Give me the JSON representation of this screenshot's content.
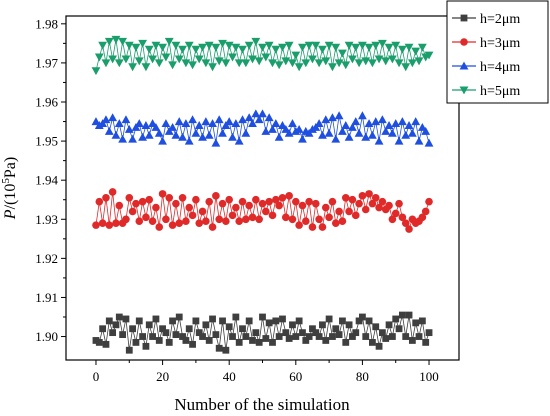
{
  "chart_data": {
    "type": "line",
    "xlabel": "Number of the simulation",
    "ylabel_italic": "P",
    "ylabel_rest": "/(10",
    "ylabel_sup": "5",
    "ylabel_end": "Pa)",
    "xlim": [
      -9,
      109
    ],
    "ylim": [
      1.894,
      1.982
    ],
    "xticks": [
      0,
      20,
      40,
      60,
      80,
      100
    ],
    "xtick_labels": [
      "0",
      "20",
      "40",
      "60",
      "80",
      "100"
    ],
    "yticks": [
      1.9,
      1.91,
      1.92,
      1.93,
      1.94,
      1.95,
      1.96,
      1.97,
      1.98
    ],
    "ytick_labels": [
      "1.90",
      "1.91",
      "1.92",
      "1.93",
      "1.94",
      "1.95",
      "1.96",
      "1.97",
      "1.98"
    ],
    "grid": false,
    "legend_position": "top-right",
    "x": [
      0,
      1,
      2,
      3,
      4,
      5,
      6,
      7,
      8,
      9,
      10,
      11,
      12,
      13,
      14,
      15,
      16,
      17,
      18,
      19,
      20,
      21,
      22,
      23,
      24,
      25,
      26,
      27,
      28,
      29,
      30,
      31,
      32,
      33,
      34,
      35,
      36,
      37,
      38,
      39,
      40,
      41,
      42,
      43,
      44,
      45,
      46,
      47,
      48,
      49,
      50,
      51,
      52,
      53,
      54,
      55,
      56,
      57,
      58,
      59,
      60,
      61,
      62,
      63,
      64,
      65,
      66,
      67,
      68,
      69,
      70,
      71,
      72,
      73,
      74,
      75,
      76,
      77,
      78,
      79,
      80,
      81,
      82,
      83,
      84,
      85,
      86,
      87,
      88,
      89,
      90,
      91,
      92,
      93,
      94,
      95,
      96,
      97,
      98,
      99,
      100
    ],
    "series": [
      {
        "name": "h=2μm",
        "color": "#3f3f3f",
        "marker": "square",
        "values": [
          1.899,
          1.8985,
          1.902,
          1.898,
          1.904,
          1.901,
          1.903,
          1.905,
          1.9005,
          1.9045,
          1.8965,
          1.902,
          1.8985,
          1.904,
          1.9,
          1.8975,
          1.903,
          1.9,
          1.9045,
          1.899,
          1.902,
          1.901,
          1.8985,
          1.904,
          1.9005,
          1.905,
          1.9,
          1.899,
          1.902,
          1.898,
          1.904,
          1.901,
          1.9,
          1.903,
          1.899,
          1.9045,
          1.9005,
          1.897,
          1.904,
          1.8965,
          1.9025,
          1.9,
          1.905,
          1.8985,
          1.902,
          1.9,
          1.904,
          1.899,
          1.901,
          1.8985,
          1.905,
          1.8995,
          1.9035,
          1.8985,
          1.904,
          1.9,
          1.9045,
          1.901,
          1.8995,
          1.903,
          1.9,
          1.904,
          1.901,
          1.899,
          1.9,
          1.902,
          1.901,
          1.9,
          1.903,
          1.899,
          1.9045,
          1.9,
          1.902,
          1.9005,
          1.904,
          1.8985,
          1.903,
          1.9,
          1.901,
          1.904,
          1.905,
          1.9,
          1.904,
          1.8985,
          1.9025,
          1.8975,
          1.901,
          1.8995,
          1.903,
          1.9,
          1.9045,
          1.902,
          1.9055,
          1.9,
          1.9055,
          1.899,
          1.9035,
          1.9,
          1.904,
          1.8985,
          1.901
        ]
      },
      {
        "name": "h=3μm",
        "color": "#e02a2a",
        "marker": "circle",
        "values": [
          1.9285,
          1.9345,
          1.929,
          1.9355,
          1.9285,
          1.937,
          1.929,
          1.9335,
          1.929,
          1.93,
          1.9355,
          1.932,
          1.934,
          1.9295,
          1.9345,
          1.9305,
          1.935,
          1.9295,
          1.933,
          1.928,
          1.9365,
          1.93,
          1.9355,
          1.9285,
          1.934,
          1.929,
          1.9355,
          1.9295,
          1.933,
          1.931,
          1.935,
          1.929,
          1.932,
          1.9295,
          1.9345,
          1.928,
          1.936,
          1.93,
          1.934,
          1.9295,
          1.935,
          1.931,
          1.933,
          1.9295,
          1.9345,
          1.93,
          1.9335,
          1.9305,
          1.935,
          1.93,
          1.934,
          1.932,
          1.9345,
          1.931,
          1.935,
          1.9335,
          1.9355,
          1.9305,
          1.936,
          1.93,
          1.9345,
          1.9285,
          1.9335,
          1.9295,
          1.9345,
          1.928,
          1.934,
          1.93,
          1.928,
          1.933,
          1.9305,
          1.9345,
          1.929,
          1.932,
          1.9295,
          1.9355,
          1.932,
          1.935,
          1.931,
          1.934,
          1.936,
          1.9325,
          1.9365,
          1.934,
          1.9355,
          1.933,
          1.9345,
          1.9325,
          1.9335,
          1.93,
          1.9315,
          1.934,
          1.9305,
          1.929,
          1.9275,
          1.93,
          1.929,
          1.9295,
          1.9305,
          1.932,
          1.9345
        ]
      },
      {
        "name": "h=4μm",
        "color": "#1f4fe0",
        "marker": "triangle-up",
        "values": [
          1.955,
          1.954,
          1.9545,
          1.9555,
          1.9525,
          1.956,
          1.9515,
          1.9545,
          1.9505,
          1.9555,
          1.953,
          1.9505,
          1.9535,
          1.9545,
          1.951,
          1.954,
          1.9515,
          1.9545,
          1.9535,
          1.952,
          1.95,
          1.9545,
          1.9525,
          1.9535,
          1.9515,
          1.955,
          1.951,
          1.9545,
          1.95,
          1.9555,
          1.952,
          1.954,
          1.951,
          1.955,
          1.9515,
          1.9545,
          1.9495,
          1.9555,
          1.952,
          1.954,
          1.955,
          1.951,
          1.9545,
          1.95,
          1.9555,
          1.952,
          1.956,
          1.9545,
          1.957,
          1.9555,
          1.957,
          1.9525,
          1.956,
          1.953,
          1.9545,
          1.951,
          1.954,
          1.953,
          1.952,
          1.9545,
          1.9525,
          1.953,
          1.9505,
          1.9525,
          1.952,
          1.953,
          1.9535,
          1.9545,
          1.9515,
          1.9555,
          1.952,
          1.956,
          1.9505,
          1.9565,
          1.9525,
          1.954,
          1.951,
          1.9535,
          1.955,
          1.952,
          1.9565,
          1.951,
          1.9545,
          1.9515,
          1.955,
          1.95,
          1.9555,
          1.9525,
          1.954,
          1.952,
          1.9545,
          1.95,
          1.955,
          1.9515,
          1.954,
          1.952,
          1.955,
          1.95,
          1.9535,
          1.9525,
          1.9495
        ]
      },
      {
        "name": "h=5μm",
        "color": "#1a9e6c",
        "marker": "triangle-down",
        "values": [
          1.968,
          1.9715,
          1.9745,
          1.97,
          1.9755,
          1.971,
          1.976,
          1.97,
          1.9755,
          1.971,
          1.9745,
          1.969,
          1.974,
          1.9705,
          1.975,
          1.969,
          1.9735,
          1.971,
          1.9745,
          1.97,
          1.974,
          1.9715,
          1.9755,
          1.9695,
          1.9745,
          1.971,
          1.9735,
          1.97,
          1.9745,
          1.9695,
          1.9735,
          1.971,
          1.974,
          1.97,
          1.9745,
          1.969,
          1.974,
          1.9705,
          1.975,
          1.97,
          1.9745,
          1.9715,
          1.974,
          1.97,
          1.9735,
          1.97,
          1.9745,
          1.971,
          1.9755,
          1.9705,
          1.974,
          1.9715,
          1.9745,
          1.97,
          1.9735,
          1.9695,
          1.974,
          1.9705,
          1.9745,
          1.97,
          1.972,
          1.969,
          1.974,
          1.97,
          1.9745,
          1.971,
          1.9745,
          1.97,
          1.9735,
          1.9705,
          1.9745,
          1.969,
          1.974,
          1.97,
          1.9725,
          1.9695,
          1.9745,
          1.971,
          1.974,
          1.97,
          1.9745,
          1.9705,
          1.974,
          1.97,
          1.9745,
          1.971,
          1.975,
          1.9705,
          1.974,
          1.971,
          1.9745,
          1.97,
          1.9735,
          1.969,
          1.974,
          1.97,
          1.973,
          1.9705,
          1.974,
          1.9715,
          1.972
        ]
      }
    ]
  }
}
